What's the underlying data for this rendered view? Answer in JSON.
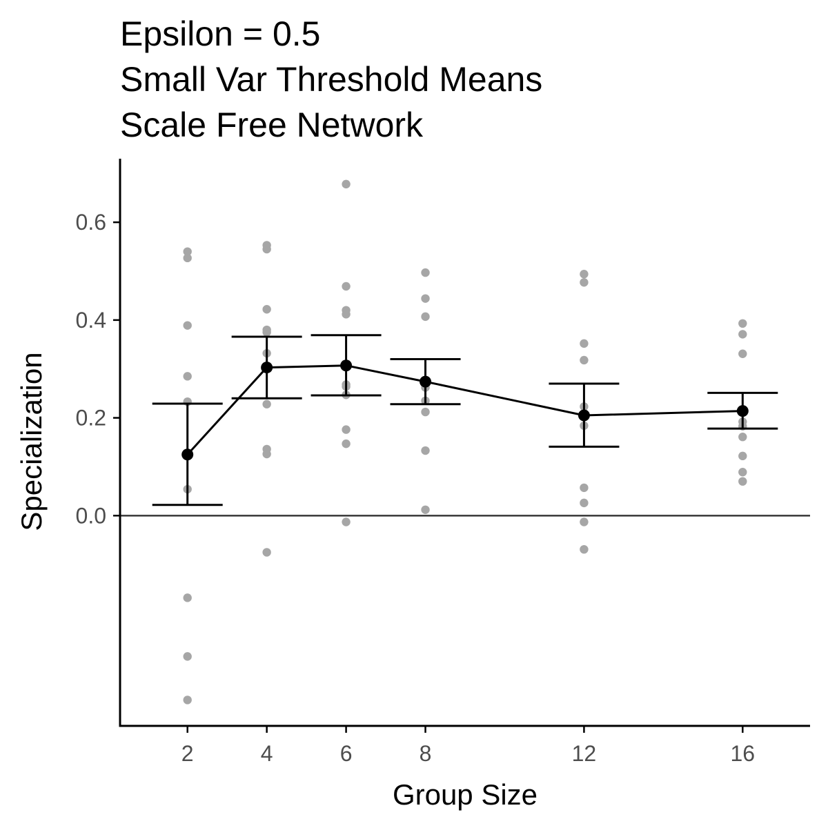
{
  "chart_data": {
    "type": "scatter",
    "title_lines": [
      "Epsilon = 0.5",
      "Small Var Threshold Means",
      "Scale Free Network"
    ],
    "xlabel": "Group Size",
    "ylabel": "Specialization",
    "x_ticks": [
      2,
      4,
      6,
      8,
      12,
      16
    ],
    "y_ticks": [
      0.0,
      0.2,
      0.4,
      0.6
    ],
    "xlim": [
      0.3,
      17.7
    ],
    "ylim": [
      -0.43,
      0.73
    ],
    "grid": false,
    "reference_line_y": 0.0,
    "colors": {
      "points": "#a6a6a6",
      "mean": "#000000",
      "axis": "#000000",
      "reference": "#404040"
    },
    "points": [
      {
        "x": 2,
        "y": [
          0.54,
          0.527,
          0.389,
          0.285,
          0.233,
          0.054,
          -0.168,
          -0.288,
          -0.377
        ]
      },
      {
        "x": 4,
        "y": [
          0.553,
          0.545,
          0.422,
          0.38,
          0.375,
          0.332,
          0.228,
          0.136,
          0.126,
          -0.075
        ]
      },
      {
        "x": 6,
        "y": [
          0.678,
          0.469,
          0.42,
          0.412,
          0.268,
          0.264,
          0.247,
          0.176,
          0.147,
          -0.013
        ]
      },
      {
        "x": 8,
        "y": [
          0.497,
          0.444,
          0.407,
          0.262,
          0.235,
          0.212,
          0.133,
          0.012
        ]
      },
      {
        "x": 12,
        "y": [
          0.494,
          0.477,
          0.352,
          0.318,
          0.223,
          0.184,
          0.057,
          0.026,
          -0.013,
          -0.069
        ]
      },
      {
        "x": 16,
        "y": [
          0.393,
          0.371,
          0.331,
          0.192,
          0.183,
          0.161,
          0.122,
          0.089,
          0.07
        ]
      }
    ],
    "means": [
      {
        "x": 2,
        "mean": 0.125,
        "lower": 0.022,
        "upper": 0.229
      },
      {
        "x": 4,
        "mean": 0.303,
        "lower": 0.24,
        "upper": 0.366
      },
      {
        "x": 6,
        "mean": 0.307,
        "lower": 0.246,
        "upper": 0.369
      },
      {
        "x": 8,
        "mean": 0.274,
        "lower": 0.228,
        "upper": 0.32
      },
      {
        "x": 12,
        "mean": 0.205,
        "lower": 0.141,
        "upper": 0.27
      },
      {
        "x": 16,
        "mean": 0.214,
        "lower": 0.178,
        "upper": 0.251
      }
    ]
  }
}
